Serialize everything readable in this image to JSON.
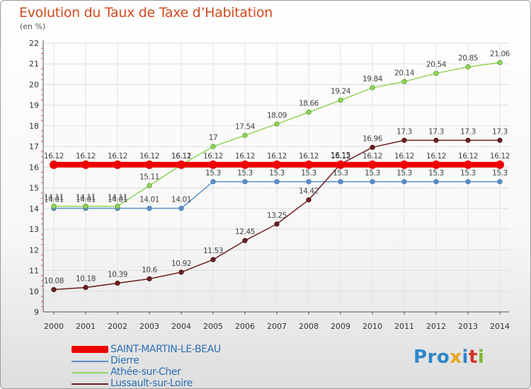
{
  "chart_data": {
    "type": "line",
    "title": "Evolution du Taux de Taxe d’Habitation",
    "subtitle": "(en %)",
    "x": [
      "2000",
      "2001",
      "2002",
      "2003",
      "2004",
      "2005",
      "2006",
      "2007",
      "2008",
      "2009",
      "2010",
      "2011",
      "2012",
      "2013",
      "2014"
    ],
    "ylim": [
      9,
      22
    ],
    "yticks": [
      9,
      10,
      11,
      12,
      13,
      14,
      15,
      16,
      17,
      18,
      19,
      20,
      21,
      22
    ],
    "grid": true,
    "legend_position": "bottom-left",
    "series": [
      {
        "name": "SAINT-MARTIN-LE-BEAU",
        "color": "#ee0000",
        "values": [
          16.12,
          16.12,
          16.12,
          16.12,
          16.12,
          16.12,
          16.12,
          16.12,
          16.12,
          16.12,
          16.12,
          16.12,
          16.12,
          16.12,
          16.12
        ]
      },
      {
        "name": "Dierre",
        "color": "#5a8fc8",
        "values": [
          14.01,
          14.01,
          14.01,
          14.01,
          14.01,
          15.3,
          15.3,
          15.3,
          15.3,
          15.3,
          15.3,
          15.3,
          15.3,
          15.3,
          15.3
        ]
      },
      {
        "name": "Athée-sur-Cher",
        "color": "#8fd65a",
        "values": [
          14.11,
          14.11,
          14.11,
          15.11,
          16.11,
          17,
          17.54,
          18.09,
          18.66,
          19.24,
          19.84,
          20.14,
          20.54,
          20.85,
          21.06
        ]
      },
      {
        "name": "Lussault-sur-Loire",
        "color": "#6e1f1f",
        "values": [
          10.08,
          10.18,
          10.39,
          10.6,
          10.92,
          11.53,
          12.45,
          13.25,
          14.42,
          16.15,
          16.96,
          17.3,
          17.3,
          17.3,
          17.3
        ]
      }
    ],
    "labels": {
      "SAINT-MARTIN-LE-BEAU": [
        "16.12",
        "16.12",
        "16.12",
        "16.12",
        "16.12",
        "16.12",
        "16.12",
        "16.12",
        "16.12",
        "16.12",
        "16.12",
        "16.12",
        "16.12",
        "16.12",
        "16.12"
      ],
      "Dierre": [
        "14.01",
        "14.01",
        "14.01",
        "14.01",
        "14.01",
        "15.3",
        "15.3",
        "15.3",
        "15.3",
        "15.3",
        "15.3",
        "15.3",
        "15.3",
        "15.3",
        "15.3"
      ],
      "Athée-sur-Cher": [
        "14.11",
        "14.11",
        "14.11",
        "15.11",
        "16.11",
        "17",
        "17.54",
        "18.09",
        "18.66",
        "19.24",
        "19.84",
        "20.14",
        "20.54",
        "20.85",
        "21.06"
      ],
      "Lussault-sur-Loire": [
        "10.08",
        "10.18",
        "10.39",
        "10.6",
        "10.92",
        "11.53",
        "12.45",
        "13.25",
        "14.42",
        "16.15",
        "16.96",
        "17.3",
        "17.3",
        "17.3",
        "17.3"
      ]
    }
  },
  "brand": {
    "parts": [
      "Pro",
      "x",
      "i",
      "t",
      "i"
    ]
  }
}
